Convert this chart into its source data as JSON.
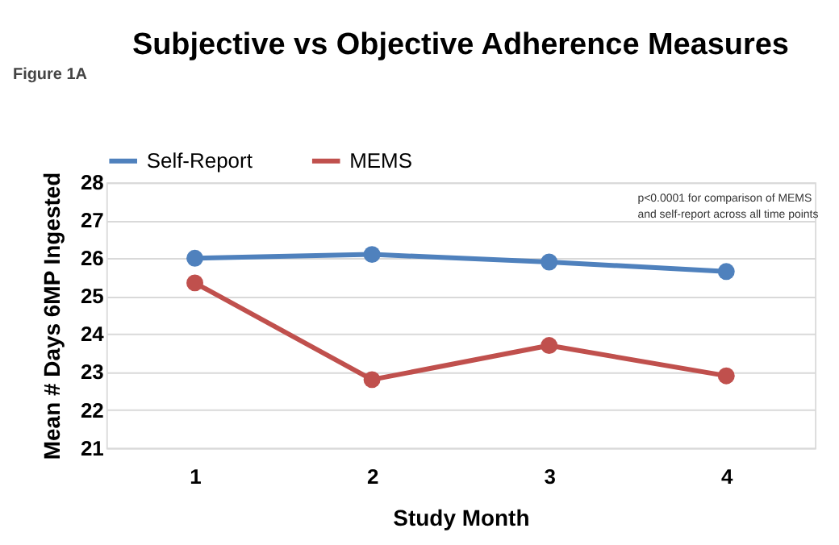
{
  "chart_data": {
    "type": "line",
    "title": "Subjective vs Objective Adherence Measures",
    "xlabel": "Study Month",
    "ylabel": "Mean # Days 6MP Ingested",
    "categories": [
      "1",
      "2",
      "3",
      "4"
    ],
    "series": [
      {
        "name": "Self-Report",
        "color": "#4f81bd",
        "values": [
          26.0,
          26.1,
          25.9,
          25.65
        ]
      },
      {
        "name": "MEMS",
        "color": "#c0504d",
        "values": [
          25.35,
          22.8,
          23.7,
          22.9
        ]
      }
    ],
    "ylim": [
      21,
      28
    ],
    "yticks": [
      21,
      22,
      23,
      24,
      25,
      26,
      27,
      28
    ],
    "grid": "y",
    "legend": "top",
    "marker": "circle",
    "line_style": "solid",
    "annotations": [
      "Figure 1A",
      "p<0.0001 for comparison of MEMS and self-report across all time points"
    ]
  }
}
